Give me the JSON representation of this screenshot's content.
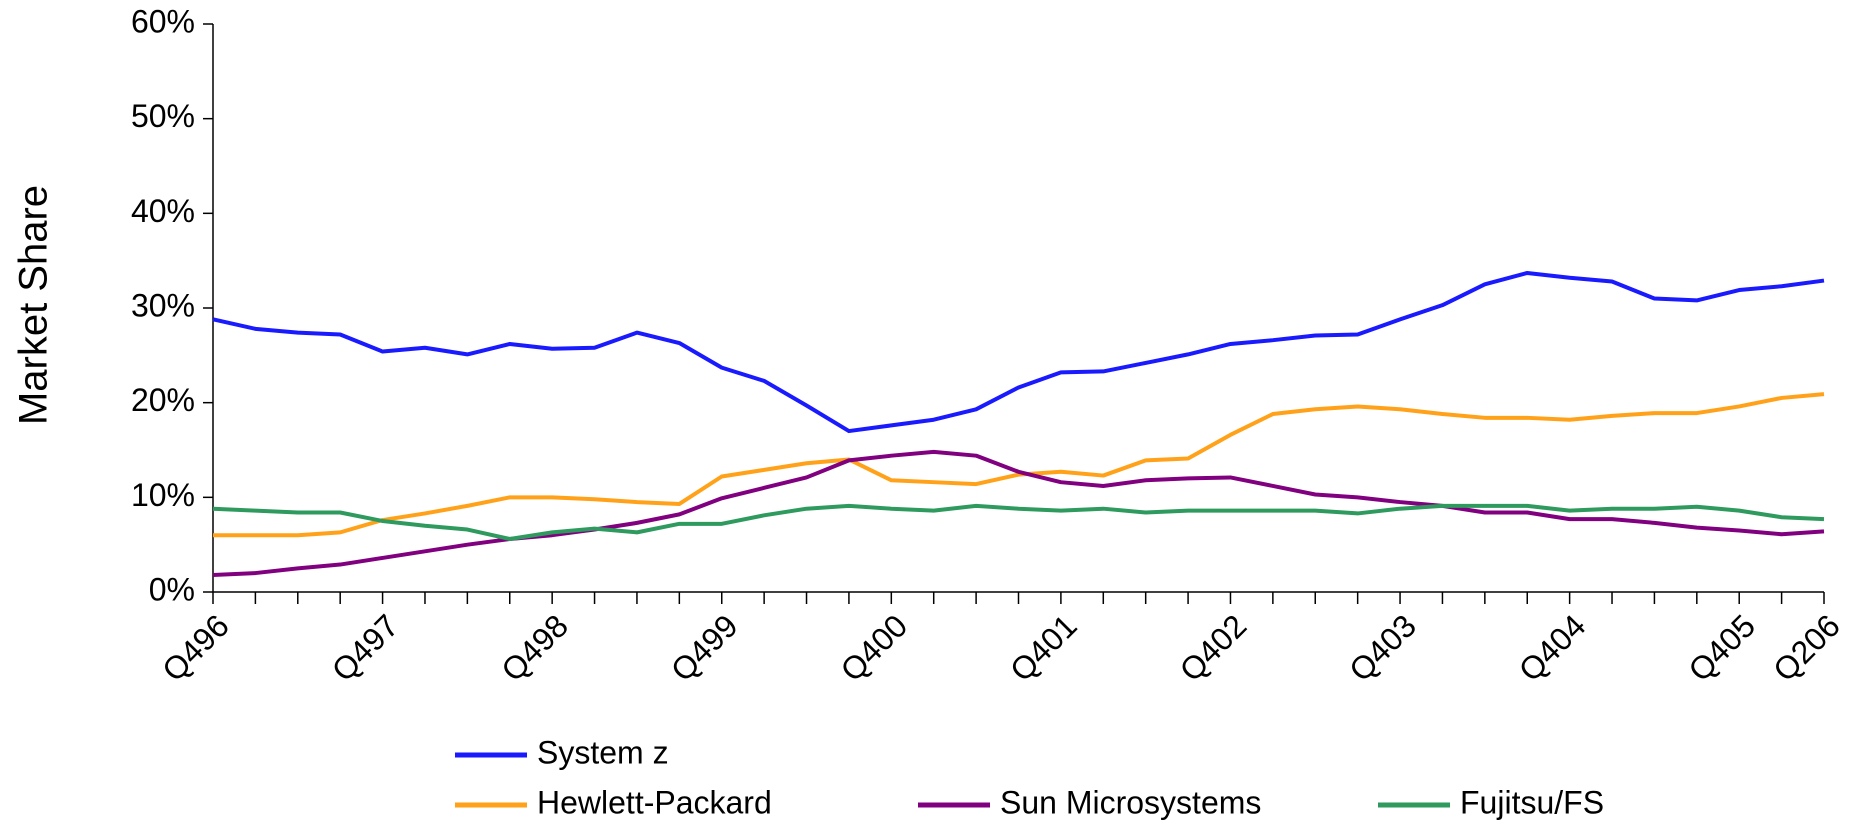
{
  "chart_data": {
    "type": "line",
    "ylabel": "Market Share",
    "categories": [
      "Q496",
      null,
      null,
      null,
      "Q497",
      null,
      null,
      null,
      "Q498",
      null,
      null,
      null,
      "Q499",
      null,
      null,
      null,
      "Q400",
      null,
      null,
      null,
      "Q401",
      null,
      null,
      null,
      "Q402",
      null,
      null,
      null,
      "Q403",
      null,
      null,
      null,
      "Q404",
      null,
      null,
      null,
      "Q405",
      null,
      "Q206"
    ],
    "series": [
      {
        "name": "System z",
        "color": "#1a1aff",
        "values": [
          28.8,
          27.8,
          27.4,
          27.2,
          25.4,
          25.8,
          25.1,
          26.2,
          25.7,
          25.8,
          27.4,
          26.3,
          23.7,
          22.3,
          19.7,
          17.0,
          17.6,
          18.2,
          19.3,
          21.6,
          23.2,
          23.3,
          24.2,
          25.1,
          26.2,
          26.6,
          27.1,
          27.2,
          28.8,
          30.3,
          32.5,
          33.7,
          33.2,
          32.8,
          31.0,
          30.8,
          31.9,
          32.3,
          32.9
        ]
      },
      {
        "name": "Hewlett-Packard",
        "color": "#ffa21a",
        "values": [
          6.0,
          6.0,
          6.0,
          6.3,
          7.6,
          8.3,
          9.1,
          10.0,
          10.0,
          9.8,
          9.5,
          9.3,
          12.2,
          12.9,
          13.6,
          14.0,
          11.8,
          11.6,
          11.4,
          12.4,
          12.7,
          12.3,
          13.9,
          14.1,
          16.6,
          18.8,
          19.3,
          19.6,
          19.3,
          18.8,
          18.4,
          18.4,
          18.2,
          18.6,
          18.9,
          18.9,
          19.6,
          20.5,
          20.9
        ]
      },
      {
        "name": "Sun Microsystems",
        "color": "#800080",
        "values": [
          1.8,
          2.0,
          2.5,
          2.9,
          3.6,
          4.3,
          5.0,
          5.6,
          6.0,
          6.6,
          7.3,
          8.2,
          9.9,
          11.0,
          12.1,
          13.9,
          14.4,
          14.8,
          14.4,
          12.7,
          11.6,
          11.2,
          11.8,
          12.0,
          12.1,
          11.2,
          10.3,
          10.0,
          9.5,
          9.1,
          8.4,
          8.4,
          7.7,
          7.7,
          7.3,
          6.8,
          6.5,
          6.1,
          6.4
        ]
      },
      {
        "name": "Fujitsu/FS",
        "color": "#2e9a5e",
        "values": [
          8.8,
          8.6,
          8.4,
          8.4,
          7.5,
          7.0,
          6.6,
          5.6,
          6.3,
          6.7,
          6.3,
          7.2,
          7.2,
          8.1,
          8.8,
          9.1,
          8.8,
          8.6,
          9.1,
          8.8,
          8.6,
          8.8,
          8.4,
          8.6,
          8.6,
          8.6,
          8.6,
          8.3,
          8.8,
          9.1,
          9.1,
          9.1,
          8.6,
          8.8,
          8.8,
          9.0,
          8.6,
          7.9,
          7.7
        ]
      }
    ],
    "ylim": [
      0,
      60
    ],
    "yticks": [
      {
        "value": 0,
        "label": "0%"
      },
      {
        "value": 10,
        "label": "10%"
      },
      {
        "value": 20,
        "label": "20%"
      },
      {
        "value": 30,
        "label": "30%"
      },
      {
        "value": 40,
        "label": "40%"
      },
      {
        "value": 50,
        "label": "50%"
      },
      {
        "value": 60,
        "label": "60%"
      }
    ],
    "legend": "bottom"
  }
}
